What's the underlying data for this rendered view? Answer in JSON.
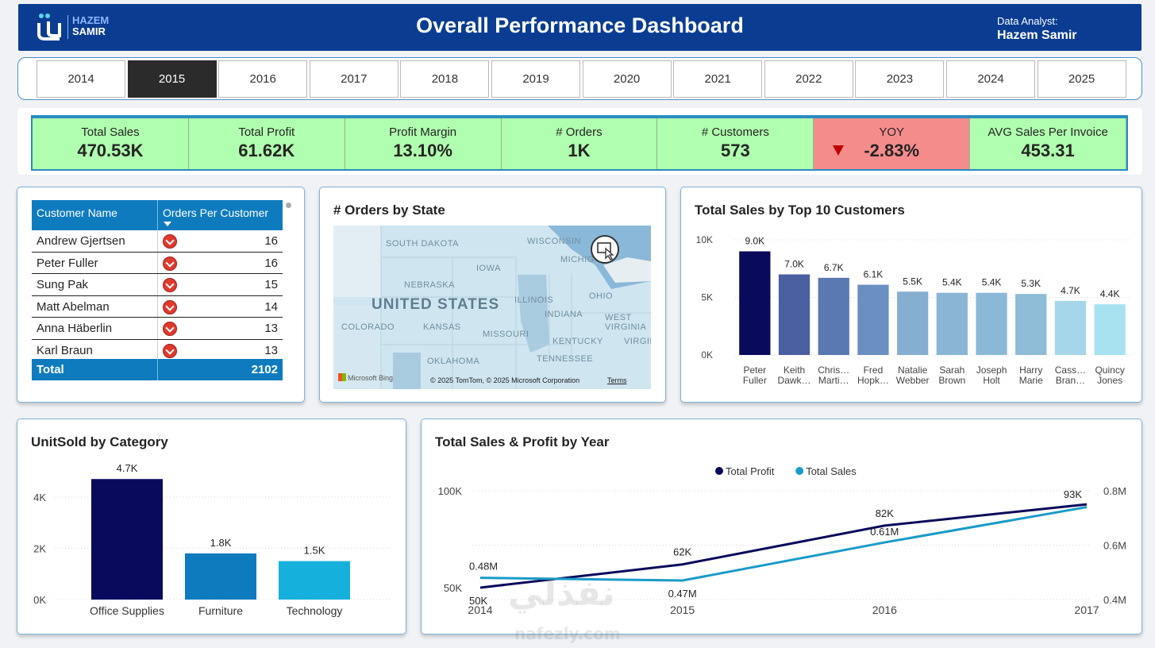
{
  "header": {
    "logo_line1": "HAZEM",
    "logo_line2": "SAMIR",
    "title": "Overall Performance Dashboard",
    "analyst_label": "Data Analyst:",
    "analyst_name": "Hazem Samir"
  },
  "years": [
    "2014",
    "2015",
    "2016",
    "2017",
    "2018",
    "2019",
    "2020",
    "2021",
    "2022",
    "2023",
    "2024",
    "2025"
  ],
  "selected_year": "2015",
  "kpis": [
    {
      "label": "Total Sales",
      "value": "470.53K"
    },
    {
      "label": "Total Profit",
      "value": "61.62K"
    },
    {
      "label": "Profit Margin",
      "value": "13.10%"
    },
    {
      "label": "# Orders",
      "value": "1K"
    },
    {
      "label": "# Customers",
      "value": "573"
    },
    {
      "label": "YOY",
      "value": "-2.83%"
    },
    {
      "label": "AVG Sales Per Invoice",
      "value": "453.31"
    }
  ],
  "colors": {
    "kpi_positive": "#b0ffb0",
    "kpi_negative": "#f48c8c",
    "header": "#0a3d91",
    "table_header": "#0f7bbf"
  },
  "customer_table": {
    "columns": [
      "Customer Name",
      "Orders Per Customer"
    ],
    "rows": [
      {
        "name": "Andrew Gjertsen",
        "orders": "16"
      },
      {
        "name": "Peter Fuller",
        "orders": "16"
      },
      {
        "name": "Sung Pak",
        "orders": "15"
      },
      {
        "name": "Matt Abelman",
        "orders": "14"
      },
      {
        "name": "Anna Häberlin",
        "orders": "13"
      },
      {
        "name": "Karl Braun",
        "orders": "13"
      }
    ],
    "total_label": "Total",
    "total_value": "2102"
  },
  "map_card": {
    "title": "# Orders by State",
    "labels": [
      "SOUTH DAKOTA",
      "WISCONSIN",
      "MICHIGAN",
      "IOWA",
      "NEBRASKA",
      "ILLINOIS",
      "OHIO",
      "INDIANA",
      "WEST VIRGINIA",
      "COLORADO",
      "KANSAS",
      "MISSOURI",
      "KENTUCKY",
      "VIRGINIA",
      "OKLAHOMA",
      "TENNESSEE"
    ],
    "country": "UNITED STATES",
    "bing": "Microsoft Bing",
    "copyright": "© 2025 TomTom, © 2025 Microsoft Corporation",
    "terms": "Terms"
  },
  "top_customers_card": {
    "title": "Total Sales by Top 10 Customers"
  },
  "category_card": {
    "title": "UnitSold by Category"
  },
  "year_card": {
    "title": "Total Sales & Profit by Year"
  },
  "watermark": {
    "arabic": "نفذلي",
    "latin": "nafezly.com"
  },
  "chart_data": [
    {
      "type": "bar",
      "title": "Total Sales by Top 10 Customers",
      "categories": [
        [
          "Peter",
          "Fuller"
        ],
        [
          "Keith",
          "Dawk…"
        ],
        [
          "Chris…",
          "Marti…"
        ],
        [
          "Fred",
          "Hopk…"
        ],
        [
          "Natalie",
          "Webber"
        ],
        [
          "Sarah",
          "Brown"
        ],
        [
          "Joseph",
          "Holt"
        ],
        [
          "Harry",
          "Marie"
        ],
        [
          "Cass…",
          "Bran…"
        ],
        [
          "Quincy",
          "Jones"
        ]
      ],
      "values": [
        9.0,
        7.0,
        6.7,
        6.1,
        5.5,
        5.4,
        5.4,
        5.3,
        4.7,
        4.4
      ],
      "data_labels": [
        "9.0K",
        "7.0K",
        "6.7K",
        "6.1K",
        "5.5K",
        "5.4K",
        "5.4K",
        "5.3K",
        "4.7K",
        "4.4K"
      ],
      "yticks": [
        "0K",
        "5K",
        "10K"
      ],
      "ylim": [
        0,
        10
      ],
      "colors": [
        "#0a0a5c",
        "#4a5fa0",
        "#5a78b2",
        "#6a8fc0",
        "#86aed0",
        "#8ab5d4",
        "#8ab8d6",
        "#8ebbd6",
        "#a6d6ea",
        "#a8e2f0"
      ]
    },
    {
      "type": "bar",
      "title": "UnitSold by Category",
      "categories": [
        "Office Supplies",
        "Furniture",
        "Technology"
      ],
      "values": [
        4.7,
        1.8,
        1.5
      ],
      "data_labels": [
        "4.7K",
        "1.8K",
        "1.5K"
      ],
      "yticks": [
        "0K",
        "2K",
        "4K"
      ],
      "ylim": [
        0,
        4.8
      ],
      "colors": [
        "#0a0a5c",
        "#0f7bbf",
        "#16b0dc"
      ]
    },
    {
      "type": "line",
      "title": "Total Sales & Profit by Year",
      "x": [
        "2014",
        "2015",
        "2016",
        "2017"
      ],
      "series": [
        {
          "name": "Total Profit",
          "values": [
            50,
            62,
            82,
            93
          ],
          "labels": [
            "50K",
            "62K",
            "82K",
            "93K"
          ],
          "color": "#0a0a5c",
          "axis": "left"
        },
        {
          "name": "Total Sales",
          "values": [
            0.48,
            0.47,
            0.61,
            0.74
          ],
          "labels": [
            "0.48M",
            "0.47M",
            "0.61M",
            ""
          ],
          "color": "#1a9bc8",
          "axis": "right"
        }
      ],
      "left_ticks": [
        "50K",
        "100K"
      ],
      "right_ticks": [
        "0.4M",
        "0.6M",
        "0.8M"
      ],
      "left_range": [
        45,
        100
      ],
      "right_range": [
        0.4,
        0.8
      ]
    }
  ]
}
